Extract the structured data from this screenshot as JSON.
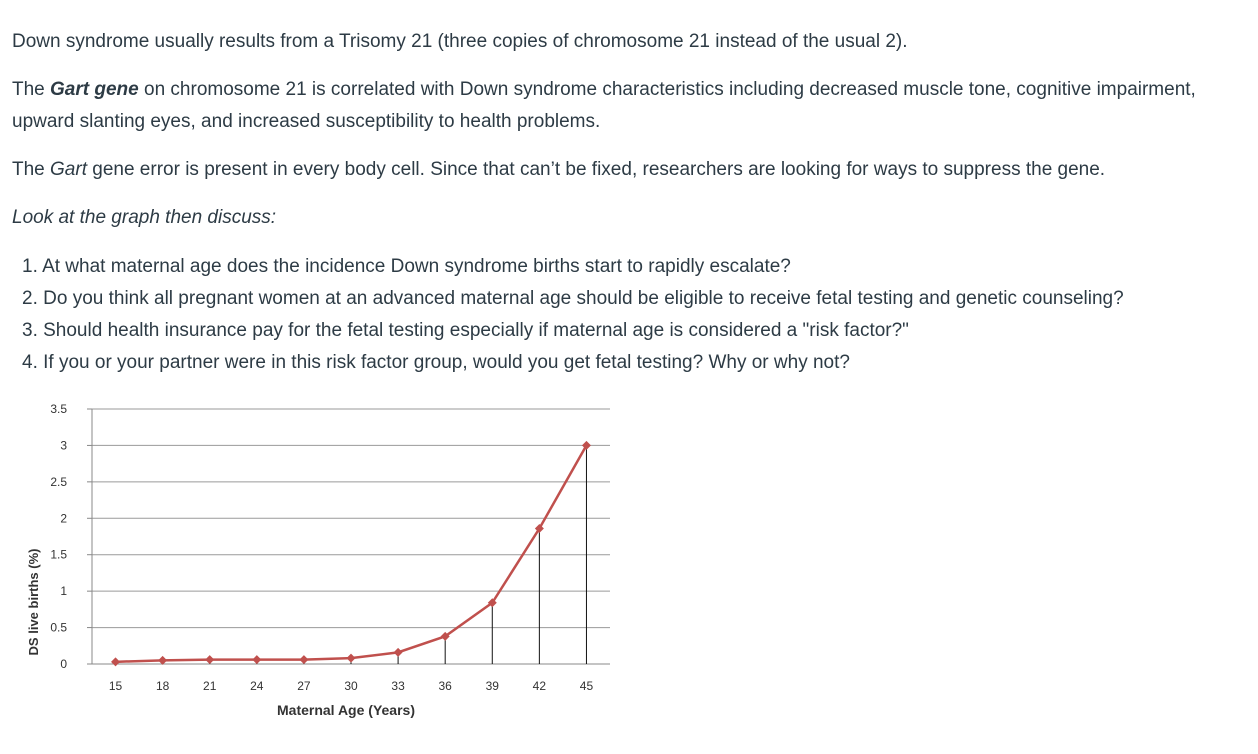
{
  "text": {
    "p1": "Down syndrome usually results from a Trisomy 21 (three copies of chromosome 21 instead of the usual 2).",
    "p2_pre": "The ",
    "p2_bold": "Gart gene",
    "p2_post": " on chromosome 21 is correlated with Down syndrome characteristics including decreased muscle tone, cognitive impairment, upward slanting eyes, and increased susceptibility to health problems.",
    "p3_pre": "The ",
    "p3_italic": "Gart",
    "p3_post": " gene error is present in every body cell. Since that can’t be fixed, researchers are looking for ways to suppress the gene.",
    "p4": "Look at the graph then discuss:",
    "questions": [
      "1. At what maternal age does the incidence Down syndrome births start to rapidly escalate?",
      "2. Do you think all pregnant women at an advanced maternal age should be eligible to receive fetal testing and genetic counseling?",
      "3. Should health insurance pay for the fetal testing especially if maternal age is considered a \"risk factor?\"",
      "4. If you or your partner were in this risk factor group, would you get fetal testing? Why or why not?"
    ]
  },
  "chart_data": {
    "type": "line",
    "xlabel": "Maternal Age (Years)",
    "ylabel": "DS live births (%)",
    "x": [
      15,
      18,
      21,
      24,
      27,
      30,
      33,
      36,
      39,
      42,
      45
    ],
    "series": [
      {
        "values": [
          0.03,
          0.05,
          0.06,
          0.06,
          0.06,
          0.08,
          0.16,
          0.38,
          0.84,
          1.86,
          3.0
        ]
      }
    ],
    "x_ticks": [
      "15",
      "18",
      "21",
      "24",
      "27",
      "30",
      "33",
      "36",
      "39",
      "42",
      "45"
    ],
    "y_ticks": [
      "0",
      "0.5",
      "1",
      "1.5",
      "2",
      "2.5",
      "3",
      "3.5"
    ],
    "ylim": [
      0,
      3.5
    ],
    "grid": true,
    "line_color": "#c0504d",
    "drop_lines": true
  }
}
